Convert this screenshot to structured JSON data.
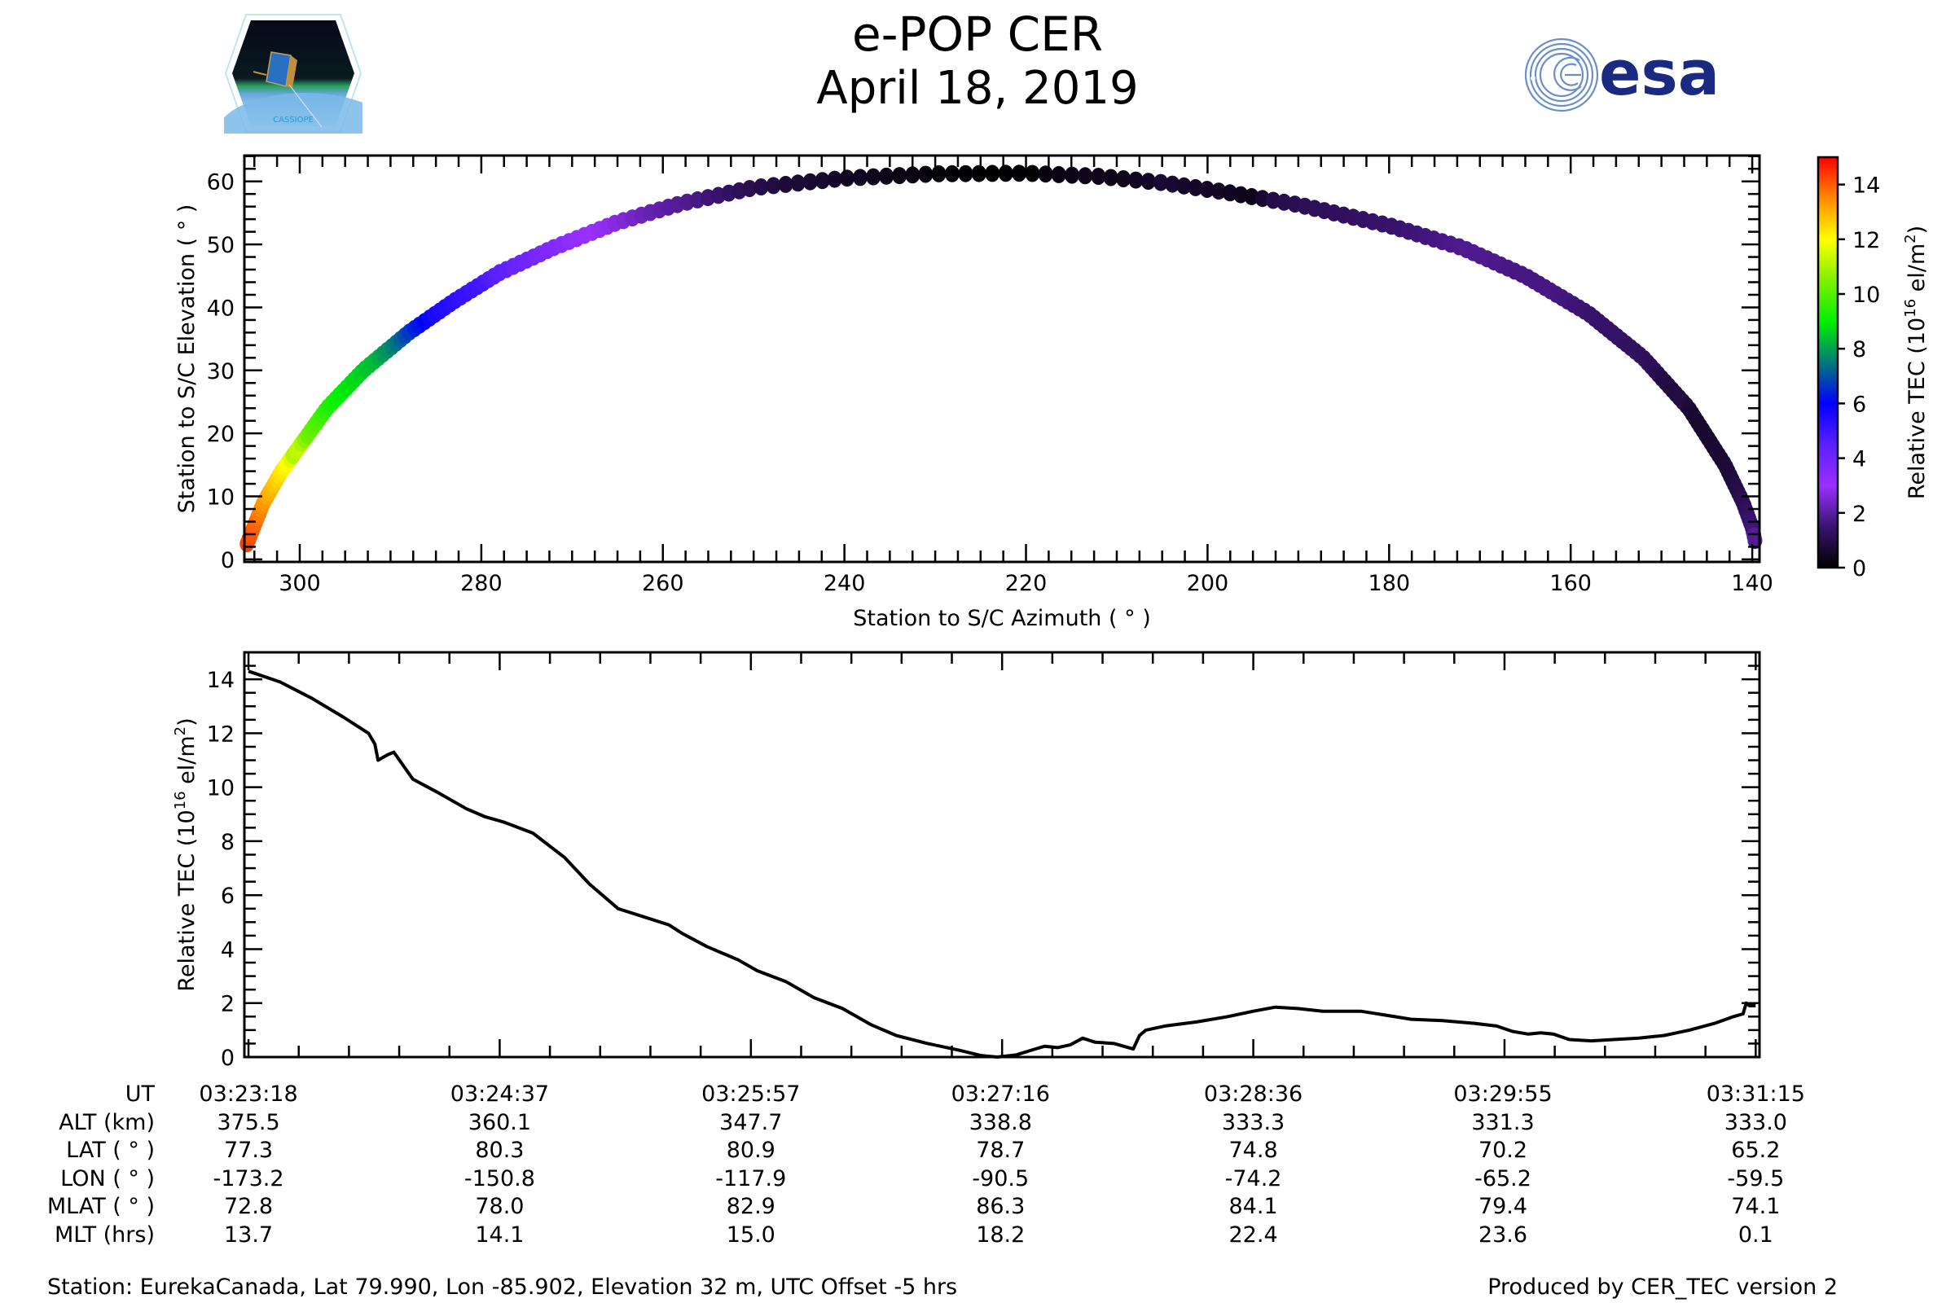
{
  "header": {
    "title": "e-POP CER",
    "date": "April 18, 2019",
    "left_logo": "cassiope-mission-logo",
    "left_logo_text": "CASSIOPE",
    "right_logo": "esa-logo",
    "right_logo_text": "esa"
  },
  "colors": {
    "esa_blue": "#1a2a80",
    "esa_light_blue": "#6a8fc8",
    "line": "#000000"
  },
  "chart_data": [
    {
      "type": "scatter",
      "name": "sky-track",
      "xlabel": "Station to S/C Azimuth ( ° )",
      "ylabel": "Station to S/C Elevation ( ° )",
      "xlim": [
        306.1,
        139.2
      ],
      "ylim": [
        -0.4,
        64.1
      ],
      "x_ticks": [
        300,
        280,
        260,
        240,
        220,
        200,
        180,
        160,
        140
      ],
      "y_ticks": [
        0,
        10,
        20,
        30,
        40,
        50,
        60
      ],
      "grid": false,
      "color_by": "Relative TEC",
      "track": [
        {
          "az": 305.8,
          "el": 2.5
        },
        {
          "az": 304.0,
          "el": 9
        },
        {
          "az": 302.0,
          "el": 14
        },
        {
          "az": 300.0,
          "el": 18
        },
        {
          "az": 297.0,
          "el": 24
        },
        {
          "az": 293.0,
          "el": 30
        },
        {
          "az": 288.0,
          "el": 36
        },
        {
          "az": 283.0,
          "el": 41
        },
        {
          "az": 278.0,
          "el": 45.5
        },
        {
          "az": 272.0,
          "el": 49.5
        },
        {
          "az": 265.0,
          "el": 53.5
        },
        {
          "az": 258.0,
          "el": 56.5
        },
        {
          "az": 250.0,
          "el": 59
        },
        {
          "az": 240.0,
          "el": 60.5
        },
        {
          "az": 230.0,
          "el": 61.2
        },
        {
          "az": 220.0,
          "el": 61.3
        },
        {
          "az": 212.0,
          "el": 60.8
        },
        {
          "az": 205.0,
          "el": 59.8
        },
        {
          "az": 198.0,
          "el": 58.3
        },
        {
          "az": 190.0,
          "el": 56.3
        },
        {
          "az": 180.0,
          "el": 53
        },
        {
          "az": 172.0,
          "el": 49.5
        },
        {
          "az": 165.0,
          "el": 45
        },
        {
          "az": 158.0,
          "el": 39
        },
        {
          "az": 152.0,
          "el": 32
        },
        {
          "az": 147.0,
          "el": 24
        },
        {
          "az": 143.0,
          "el": 15
        },
        {
          "az": 141.0,
          "el": 9
        },
        {
          "az": 140.0,
          "el": 5
        },
        {
          "az": 139.7,
          "el": 3
        }
      ],
      "colorbar": {
        "label": "Relative TEC (10^16 el/m^2)",
        "label_main": "Relative TEC (10",
        "label_exp1": "16",
        "label_mid": " el/m",
        "label_exp2": "2",
        "label_end": ")",
        "range": [
          0,
          15
        ],
        "ticks": [
          0,
          2,
          4,
          6,
          8,
          10,
          12,
          14
        ],
        "colormap": [
          {
            "v": 0.0,
            "c": "#000000"
          },
          {
            "v": 1.5,
            "c": "#3a1470"
          },
          {
            "v": 3.0,
            "c": "#9a30ff"
          },
          {
            "v": 4.5,
            "c": "#5a20ff"
          },
          {
            "v": 6.0,
            "c": "#0000ff"
          },
          {
            "v": 7.5,
            "c": "#007a7a"
          },
          {
            "v": 9.0,
            "c": "#00f000"
          },
          {
            "v": 10.5,
            "c": "#80f000"
          },
          {
            "v": 12.0,
            "c": "#ffff00"
          },
          {
            "v": 13.5,
            "c": "#ff8a00"
          },
          {
            "v": 15.0,
            "c": "#ff0000"
          }
        ]
      }
    },
    {
      "type": "line",
      "name": "tec-time-series",
      "xlabel": "UT",
      "ylabel": "Relative TEC (10^16 el/m^2)",
      "ylabel_main": "Relative TEC (10",
      "ylabel_exp1": "16",
      "ylabel_mid": " el/m",
      "ylabel_exp2": "2",
      "ylabel_end": ")",
      "x_unit": "seconds after 03:23:18",
      "xlim": [
        -1.3,
        478.2
      ],
      "ylim": [
        0,
        15
      ],
      "y_ticks": [
        0,
        2,
        4,
        6,
        8,
        10,
        12,
        14
      ],
      "x_major_ticks_s": [
        0,
        79.5,
        159,
        238,
        318,
        397,
        477
      ],
      "grid": false,
      "t": [
        0,
        10,
        20,
        30,
        38,
        40,
        41,
        44,
        46,
        52,
        60,
        69,
        75,
        81,
        90,
        100,
        108,
        117,
        125,
        133,
        137,
        145,
        155,
        161,
        170,
        179,
        188,
        197,
        205,
        215,
        225,
        232,
        237,
        243,
        249,
        252,
        256,
        260,
        264,
        268,
        274,
        280,
        282,
        284,
        290,
        300,
        310,
        318,
        325,
        332,
        340,
        352,
        360,
        368,
        378,
        388,
        395,
        400,
        405,
        409,
        413,
        418,
        425,
        432,
        440,
        448,
        456,
        464,
        470,
        473,
        474,
        475,
        477
      ],
      "tec": [
        14.3,
        13.9,
        13.3,
        12.6,
        12.0,
        11.6,
        11.0,
        11.2,
        11.3,
        10.3,
        9.8,
        9.2,
        8.9,
        8.7,
        8.3,
        7.4,
        6.4,
        5.5,
        5.2,
        4.9,
        4.6,
        4.1,
        3.6,
        3.2,
        2.8,
        2.2,
        1.8,
        1.2,
        0.8,
        0.5,
        0.25,
        0.05,
        0.0,
        0.08,
        0.3,
        0.4,
        0.35,
        0.45,
        0.7,
        0.55,
        0.5,
        0.3,
        0.8,
        1.0,
        1.15,
        1.3,
        1.5,
        1.7,
        1.85,
        1.8,
        1.7,
        1.7,
        1.55,
        1.4,
        1.35,
        1.25,
        1.15,
        0.95,
        0.85,
        0.9,
        0.85,
        0.65,
        0.6,
        0.65,
        0.7,
        0.8,
        1.0,
        1.25,
        1.5,
        1.6,
        2.0,
        1.9,
        1.9
      ]
    }
  ],
  "ephemeris_table": {
    "row_labels": [
      "UT",
      "ALT (km)",
      "LAT ( ° )",
      "LON ( ° )",
      "MLAT ( ° )",
      "MLT (hrs)"
    ],
    "columns": [
      [
        "03:23:18",
        "375.5",
        "77.3",
        "-173.2",
        "72.8",
        "13.7"
      ],
      [
        "03:24:37",
        "360.1",
        "80.3",
        "-150.8",
        "78.0",
        "14.1"
      ],
      [
        "03:25:57",
        "347.7",
        "80.9",
        "-117.9",
        "82.9",
        "15.0"
      ],
      [
        "03:27:16",
        "338.8",
        "78.7",
        "-90.5",
        "86.3",
        "18.2"
      ],
      [
        "03:28:36",
        "333.3",
        "74.8",
        "-74.2",
        "84.1",
        "22.4"
      ],
      [
        "03:29:55",
        "331.3",
        "70.2",
        "-65.2",
        "79.4",
        "23.6"
      ],
      [
        "03:31:15",
        "333.0",
        "65.2",
        "-59.5",
        "74.1",
        "0.1"
      ]
    ]
  },
  "footer": {
    "station": "Station: EurekaCanada, Lat 79.990, Lon -85.902, Elevation 32 m, UTC Offset -5 hrs",
    "produced_by": "Produced by CER_TEC version 2"
  }
}
